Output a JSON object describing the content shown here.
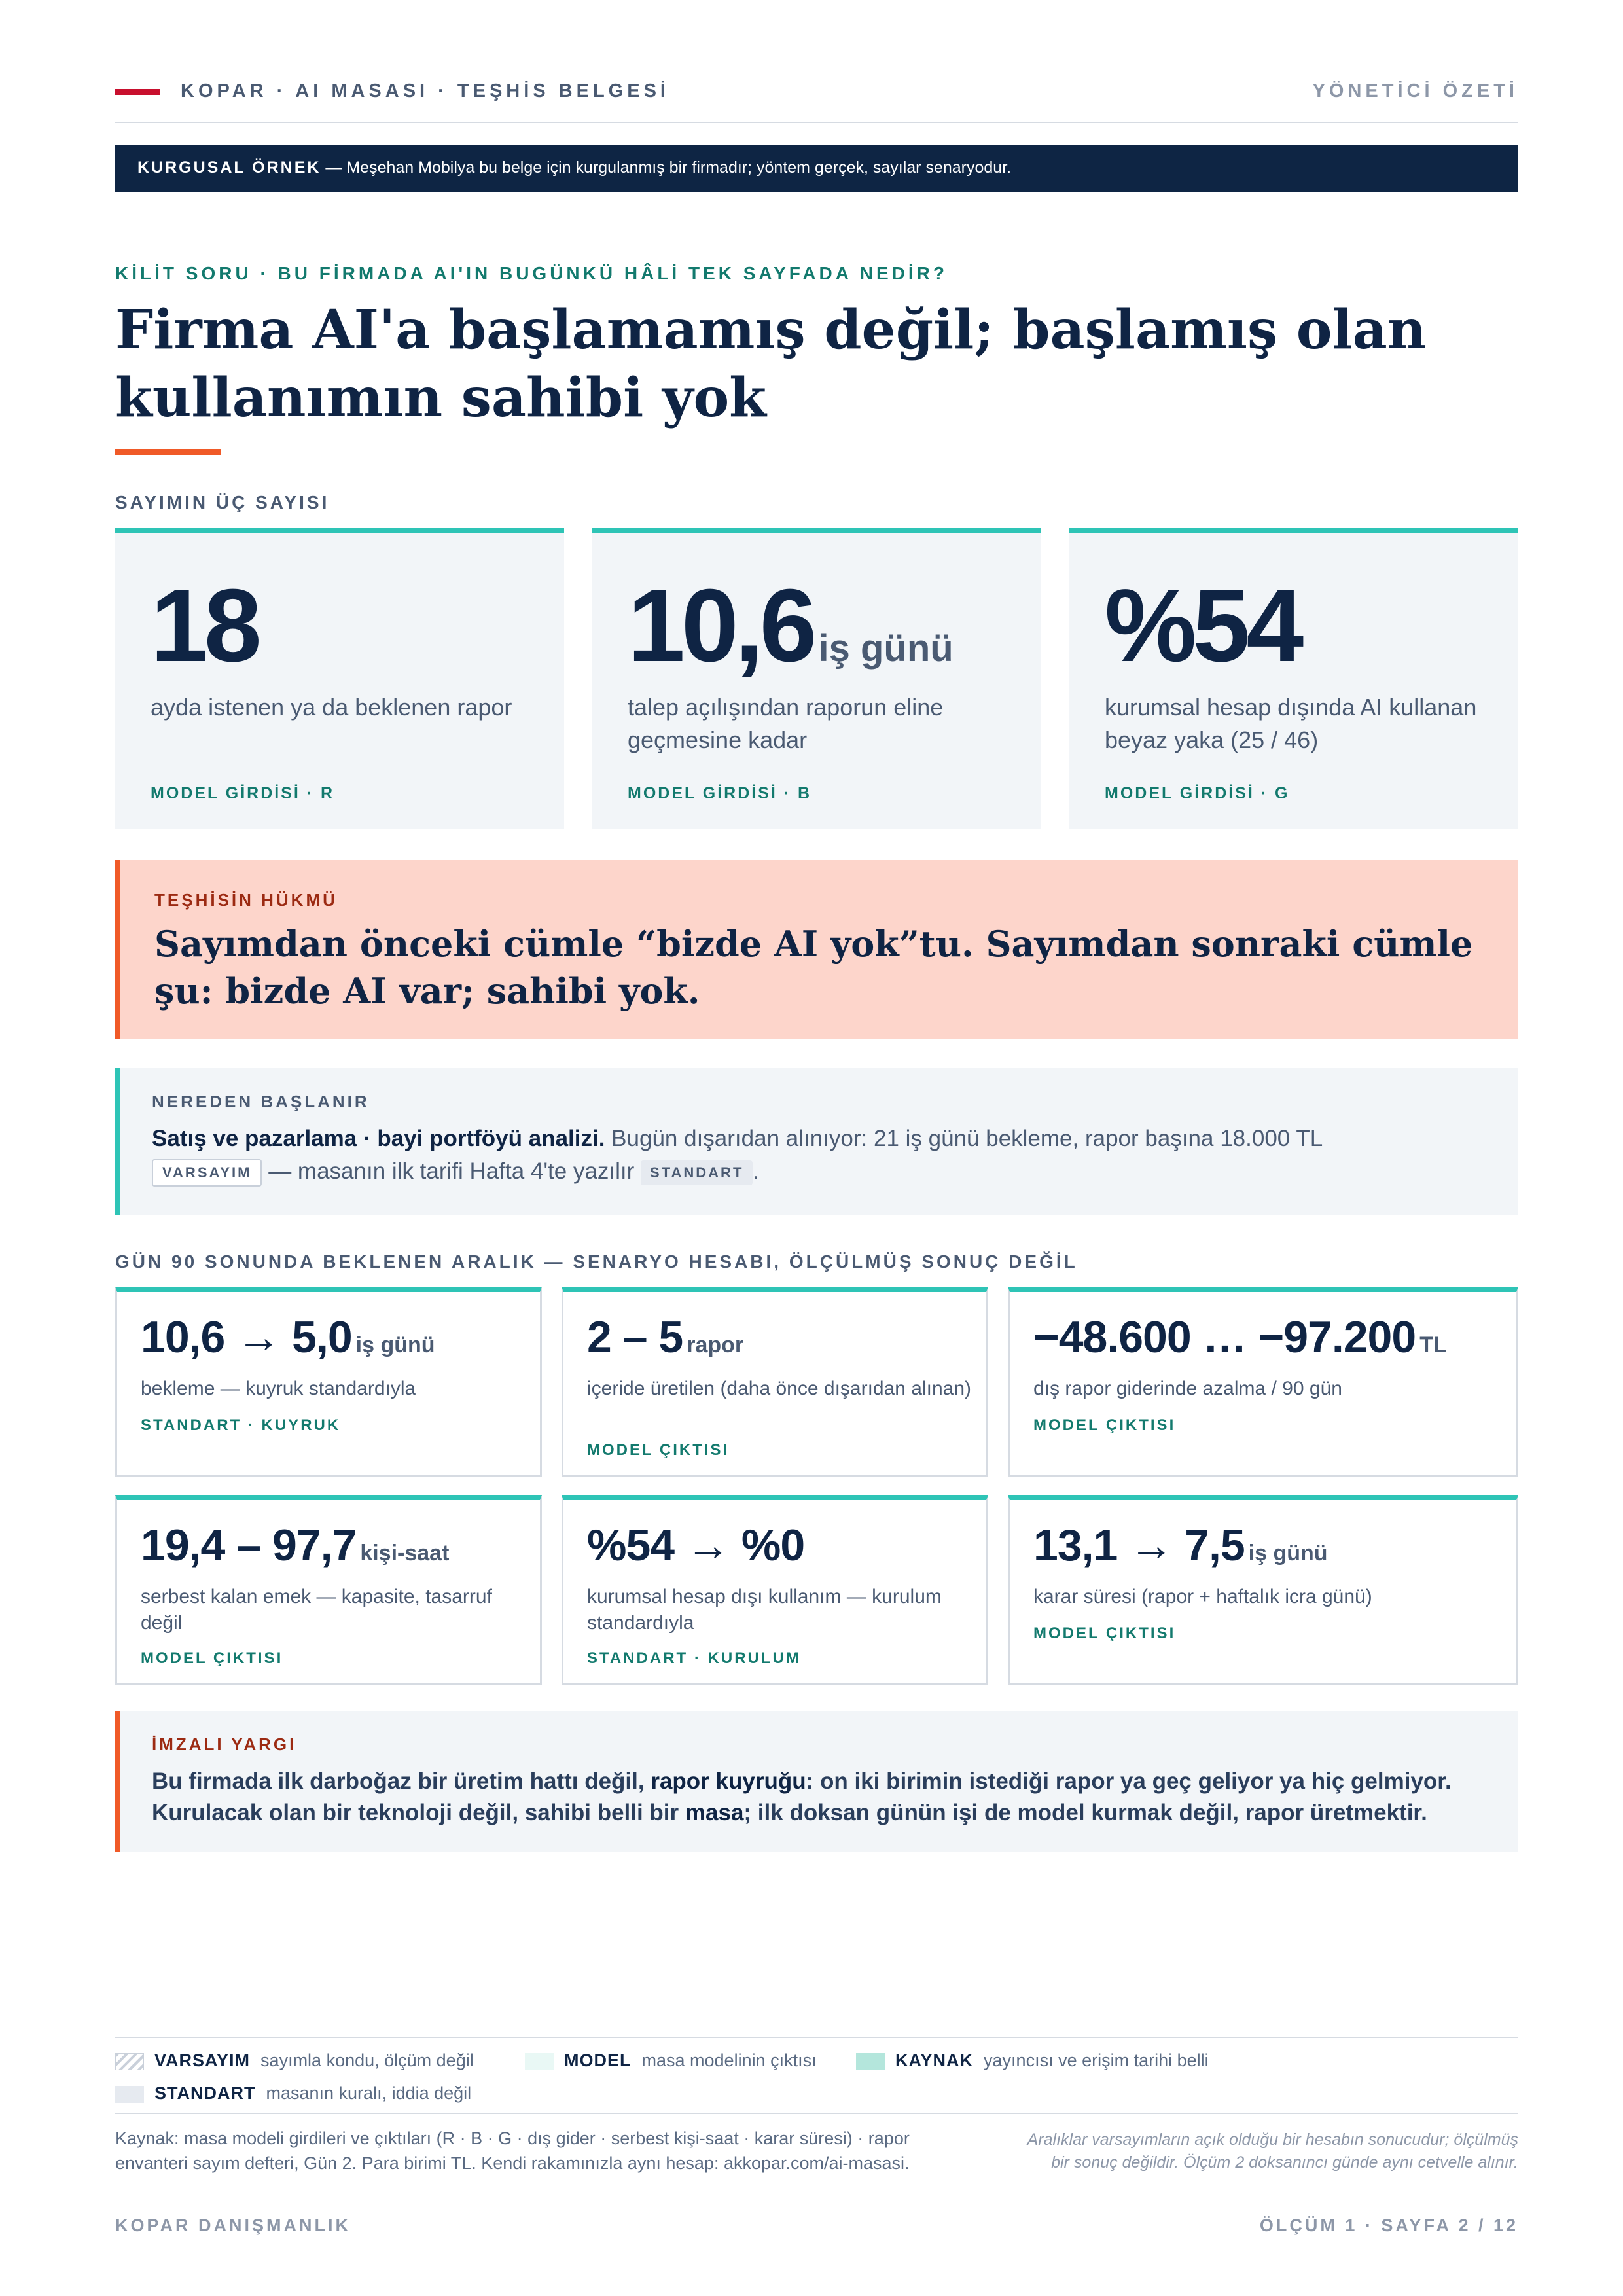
{
  "header": {
    "left": "KOPAR · AI MASASI · TEŞHİS BELGESİ",
    "right": "YÖNETİCİ ÖZETİ"
  },
  "banner": {
    "label": "KURGUSAL ÖRNEK",
    "text": " — Meşehan Mobilya bu belge için kurgulanmış bir firmadır; yöntem gerçek, sayılar senaryodur."
  },
  "key_question": "KİLİT SORU · BU FİRMADA AI'IN BUGÜNKÜ HÂLİ TEK SAYFADA NEDİR?",
  "title": "Firma AI'a başlamamış değil; başlamış olan kullanımın sahibi yok",
  "stats_label": "SAYIMIN ÜÇ SAYISI",
  "stats": [
    {
      "value": "18",
      "unit": "",
      "desc": "ayda istenen ya da beklenen rapor",
      "tag": "MODEL GİRDİSİ · R"
    },
    {
      "value": "10,6",
      "unit": "iş günü",
      "desc": "talep açılışından raporun eline geçmesine kadar",
      "tag": "MODEL GİRDİSİ · B"
    },
    {
      "value": "%54",
      "unit": "",
      "desc": "kurumsal hesap dışında AI kullanan beyaz yaka (25 / 46)",
      "tag": "MODEL GİRDİSİ · G"
    }
  ],
  "verdict": {
    "label": "TEŞHİSİN HÜKMÜ",
    "text": "Sayımdan önceki cümle “bizde AI yok”tu. Sayımdan sonraki cümle şu: bizde AI var; sahibi yok."
  },
  "start": {
    "label": "NEREDEN BAŞLANIR",
    "lead": "Satış ve pazarlama · bayi portföyü analizi.",
    "line1_rest": " Bugün dışarıdan alınıyor: 21 iş günü bekleme, rapor başına 18.000 TL",
    "chip1": "VARSAYIM",
    "line2_mid": " — masanın ilk tarifi Hafta 4'te yazılır ",
    "chip2": "STANDART",
    "line2_end": "."
  },
  "range_label": "GÜN 90 SONUNDA BEKLENEN ARALIK — SENARYO HESABI, ÖLÇÜLMÜŞ SONUÇ DEĞİL",
  "cards": [
    {
      "value": "10,6 → 5,0",
      "unit": "iş günü",
      "desc": "bekleme — kuyruk standardıyla",
      "tag": "STANDART · KUYRUK"
    },
    {
      "value": "2 – 5",
      "unit": "rapor",
      "desc": "içeride üretilen (daha önce dışarıdan alınan)",
      "tag": "MODEL ÇIKTISI"
    },
    {
      "value": "−48.600 … −97.200",
      "unit": "TL",
      "desc": "dış rapor giderinde azalma / 90 gün",
      "tag": "MODEL ÇIKTISI"
    },
    {
      "value": "19,4 – 97,7",
      "unit": "kişi-saat",
      "desc": "serbest kalan emek — kapasite, tasarruf değil",
      "tag": "MODEL ÇIKTISI"
    },
    {
      "value": "%54 → %0",
      "unit": "",
      "desc": "kurumsal hesap dışı kullanım — kurulum standardıyla",
      "tag": "STANDART · KURULUM"
    },
    {
      "value": "13,1 → 7,5",
      "unit": "iş günü",
      "desc": "karar süresi (rapor + haftalık icra günü)",
      "tag": "MODEL ÇIKTISI"
    }
  ],
  "signed": {
    "label": "İMZALI YARGI",
    "p1": "Bu firmada ilk darboğaz bir üretim hattı değil, ",
    "b1": "rapor kuyruğu",
    "p2": ": on iki birimin istediği rapor ya geç geliyor ya hiç gelmiyor. Kurulacak olan bir teknoloji değil, sahibi belli bir ",
    "b2": "masa",
    "p3": "; ilk doksan günün işi de model kurmak değil, rapor üretmektir."
  },
  "legend": [
    {
      "key": "VARSAYIM",
      "text": "sayımla kondu, ölçüm değil"
    },
    {
      "key": "MODEL",
      "text": "masa modelinin çıktısı"
    },
    {
      "key": "KAYNAK",
      "text": "yayıncısı ve erişim tarihi belli"
    },
    {
      "key": "STANDART",
      "text": "masanın kuralı, iddia değil"
    }
  ],
  "source": "Kaynak: masa modeli girdileri ve çıktıları (R · B · G · dış gider · serbest kişi-saat · karar süresi) · rapor envanteri sayım defteri, Gün 2. Para birimi TL. Kendi rakamınızla aynı hesap: akkopar.com/ai-masasi.",
  "note": "Aralıklar varsayımların açık olduğu bir hesabın sonucudur; ölçülmüş bir sonuç değildir. Ölçüm 2 doksanıncı günde aynı cetvelle alınır.",
  "footer": {
    "left": "KOPAR DANIŞMANLIK",
    "right": "ÖLÇÜM 1 · SAYFA 2 / 12"
  },
  "colors": {
    "navy": "#0e2544",
    "accent": "#f05a28",
    "teal": "#2ec4b6",
    "red": "#c8102e"
  }
}
